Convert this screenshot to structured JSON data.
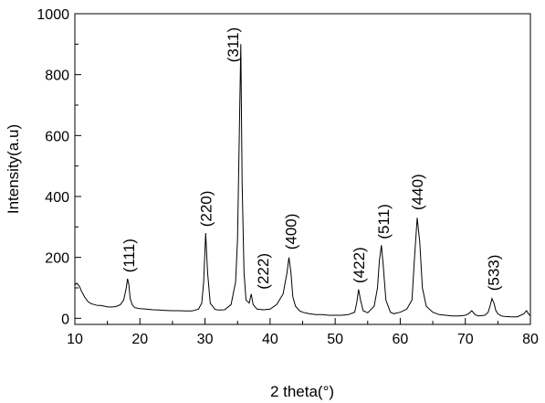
{
  "chart_data": {
    "type": "line",
    "title": "",
    "xlabel": "2 theta(°)",
    "ylabel": "Intensity(a.u)",
    "xlim": [
      10,
      80
    ],
    "ylim": [
      -20,
      1000
    ],
    "x_ticks": [
      10,
      20,
      30,
      40,
      50,
      60,
      70,
      80
    ],
    "y_ticks": [
      0,
      200,
      400,
      600,
      800,
      1000
    ],
    "grid": false,
    "legend": "none",
    "series": [
      {
        "color": "#000000",
        "x": [
          10,
          10.3,
          10.7,
          11,
          11.5,
          12,
          12.5,
          13,
          13.5,
          14,
          14.5,
          15,
          15.5,
          16,
          16.5,
          17,
          17.5,
          17.9,
          18.1,
          18.3,
          18.5,
          18.8,
          19.2,
          20,
          21,
          22,
          23,
          24,
          25,
          26,
          27,
          28,
          29,
          29.5,
          29.8,
          30.1,
          30.4,
          30.8,
          31.5,
          32,
          33,
          34,
          34.7,
          35,
          35.3,
          35.5,
          35.7,
          36,
          36.3,
          36.8,
          37.1,
          37.4,
          38,
          39,
          40,
          41,
          42,
          42.6,
          42.9,
          43.2,
          43.5,
          43.9,
          44.5,
          45,
          46,
          47,
          48,
          49,
          50,
          51,
          52,
          53,
          53.3,
          53.6,
          53.9,
          54.3,
          55,
          56,
          56.5,
          56.8,
          57.1,
          57.4,
          57.8,
          58.5,
          59,
          60,
          61,
          61.8,
          62.2,
          62.6,
          63.0,
          63.4,
          64,
          65,
          66,
          67,
          68,
          69,
          70,
          70.5,
          71,
          71.5,
          72,
          73,
          73.5,
          73.8,
          74.1,
          74.4,
          74.7,
          75,
          75.5,
          76,
          77,
          78,
          79,
          79.4,
          79.8,
          80
        ],
        "y": [
          110,
          115,
          105,
          90,
          70,
          55,
          48,
          45,
          42,
          42,
          40,
          38,
          37,
          38,
          40,
          45,
          60,
          100,
          130,
          110,
          65,
          45,
          35,
          32,
          30,
          28,
          27,
          26,
          25,
          25,
          24,
          24,
          30,
          50,
          120,
          280,
          150,
          50,
          30,
          27,
          28,
          45,
          120,
          260,
          650,
          900,
          450,
          150,
          60,
          50,
          80,
          45,
          30,
          28,
          30,
          45,
          80,
          150,
          200,
          150,
          70,
          40,
          25,
          20,
          15,
          12,
          12,
          10,
          10,
          10,
          12,
          20,
          50,
          95,
          60,
          25,
          18,
          40,
          100,
          190,
          240,
          170,
          60,
          20,
          15,
          20,
          30,
          60,
          200,
          330,
          250,
          100,
          40,
          20,
          12,
          10,
          8,
          8,
          10,
          15,
          25,
          12,
          8,
          10,
          20,
          40,
          65,
          50,
          25,
          15,
          8,
          6,
          5,
          5,
          15,
          25,
          12,
          10
        ]
      }
    ],
    "annotations": [
      {
        "text": "(111)",
        "x": 18.3,
        "y": 150
      },
      {
        "text": "(220)",
        "x": 30.1,
        "y": 300
      },
      {
        "text": "(311)",
        "x": 34.3,
        "y": 840
      },
      {
        "text": "(222)",
        "x": 38.9,
        "y": 95
      },
      {
        "text": "(400)",
        "x": 43.2,
        "y": 225
      },
      {
        "text": "(422)",
        "x": 53.6,
        "y": 115
      },
      {
        "text": "(511)",
        "x": 57.4,
        "y": 260
      },
      {
        "text": "(440)",
        "x": 62.6,
        "y": 355
      },
      {
        "text": "(533)",
        "x": 74.3,
        "y": 90
      }
    ]
  }
}
